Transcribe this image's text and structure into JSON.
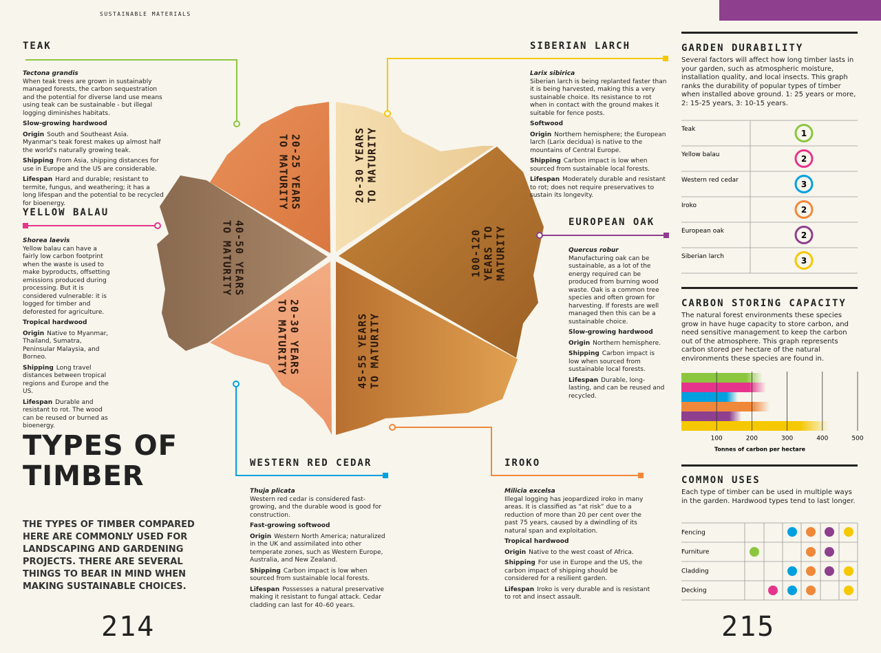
{
  "header": {
    "section": "SUSTAINABLE MATERIALS",
    "title": [
      "TYPES OF",
      "TIMBER"
    ],
    "intro": "THE TYPES OF TIMBER COMPARED HERE ARE COMMONLY USED FOR LANDSCAPING AND GARDENING PROJECTS. THERE ARE SEVERAL THINGS TO BEAR IN MIND WHEN MAKING SUSTAINABLE CHOICES.",
    "pages": [
      "214",
      "215"
    ]
  },
  "labels": {
    "origin": "Origin",
    "shipping": "Shipping",
    "lifespan": "Lifespan"
  },
  "species": [
    {
      "name": "TEAK",
      "latin": "Tectona grandis",
      "description": "When teak trees are grown in sustainably managed forests, the carbon sequestration and the potential for diverse land use means using teak can be sustainable - but illegal logging diminishes habitats.",
      "type": "Slow-growing hardwood",
      "origin": "South and Southeast Asia. Myanmar's teak forest makes up almost half the world's naturally growing teak.",
      "shipping": "From Asia, shipping distances for use in Europe and the US are considerable.",
      "lifespan": "Hard and durable; resistant to termite, fungus, and weathering; it has a long lifespan and the potential to be recycled for bioenergy.",
      "maturity": [
        "20-25 YEARS",
        "TO MATURITY"
      ]
    },
    {
      "name": "YELLOW BALAU",
      "latin": "Shorea laevis",
      "description": "Yellow balau can have a fairly low carbon footprint when the waste is used to make byproducts, offsetting emissions produced during processing. But it is considered vulnerable: it is logged for timber and deforested for agriculture.",
      "type": "Tropical hardwood",
      "origin": "Native to Myanmar, Thailand, Sumatra, Peninsular Malaysia, and Borneo.",
      "shipping": "Long travel distances between tropical regions and Europe and the US.",
      "lifespan": "Durable and resistant to rot. The wood can be reused or burned as bioenergy.",
      "maturity": [
        "40-50 YEARS",
        "TO MATURITY"
      ]
    },
    {
      "name": "SIBERIAN LARCH",
      "latin": "Larix sibirica",
      "description": "Siberian larch is being replanted faster than it is being harvested, making this a very sustainable choice. Its resistance to rot when in contact with the ground makes it suitable for fence posts.",
      "type": "Softwood",
      "origin": "Northern hemisphere; the European larch (Larix decidua) is native to the mountains of Central Europe.",
      "shipping": "Carbon impact is low when sourced from sustainable local forests.",
      "lifespan": "Moderately durable and resistant to rot; does not require preservatives to sustain its longevity.",
      "maturity": [
        "20-30 YEARS",
        "TO MATURITY"
      ]
    },
    {
      "name": "EUROPEAN OAK",
      "latin": "Quercus robur",
      "description": "Manufacturing oak can be sustainable, as a lot of the energy required can be produced from burning wood waste. Oak is a common tree species and often grown for harvesting. If forests are well managed then this can be a sustainable choice.",
      "type": "Slow-growing hardwood",
      "origin": "Northern hemisphere.",
      "shipping": "Carbon impact is low when sourced from sustainable local forests.",
      "lifespan": "Durable, long-lasting, and can be reused and recycled.",
      "maturity": [
        "100-120",
        "YEARS TO",
        "MATURITY"
      ]
    },
    {
      "name": "WESTERN RED CEDAR",
      "latin": "Thuja plicata",
      "description": "Western red cedar is considered fast-growing, and the durable wood is good for construction.",
      "type": "Fast-growing softwood",
      "origin": "Western North America; naturalized in the UK and assimilated into other temperate zones, such as Western Europe, Australia, and New Zealand.",
      "shipping": "Carbon impact is low when sourced from sustainable local forests.",
      "lifespan": "Possesses a natural preservative making it resistant to fungal attack. Cedar cladding can last for 40–60 years.",
      "maturity": [
        "20-30 YEARS",
        "TO MATURITY"
      ]
    },
    {
      "name": "IROKO",
      "latin": "Milicia excelsa",
      "description": "Illegal logging has jeopardized iroko in many areas. It is classified as “at risk” due to a reduction of more than 20 per cent over the past 75 years, caused by a dwindling of its natural span and exploitation.",
      "type": "Tropical hardwood",
      "origin": "Native to the west coast of Africa.",
      "shipping": "For use in Europe and the US, the carbon impact of shipping should be considered for a resilient garden.",
      "lifespan": "Iroko is very durable and is resistant to rot and insect assault.",
      "maturity": [
        "45-55 YEARS",
        "TO MATURITY"
      ]
    }
  ],
  "durability": {
    "title": "GARDEN DURABILITY",
    "description": "Several factors will affect how long timber lasts in your garden, such as atmospheric moisture, installation quality, and local insects. This graph ranks the durability of popular types of timber when installed above ground. 1: 25 years or more, 2: 15-25 years, 3: 10-15 years.",
    "rows": [
      {
        "label": "Teak",
        "rating": 1,
        "color": "#8cc63f"
      },
      {
        "label": "Yellow balau",
        "rating": 2,
        "color": "#e6348c"
      },
      {
        "label": "Western red cedar",
        "rating": 3,
        "color": "#00a0e0"
      },
      {
        "label": "Iroko",
        "rating": 2,
        "color": "#f0883a"
      },
      {
        "label": "European oak",
        "rating": 2,
        "color": "#8e3f8e"
      },
      {
        "label": "Siberian larch",
        "rating": 3,
        "color": "#f5c800"
      }
    ]
  },
  "carbon": {
    "title": "CARBON STORING CAPACITY",
    "description": "The natural forest environments these species grow in have huge capacity to store carbon, and need sensitive management to keep the carbon out of the atmosphere. This graph represents carbon stored per hectare of the natural environments these species are found in.",
    "chart_data": {
      "type": "bar",
      "orientation": "horizontal",
      "xlabel": "Tonnes of carbon per hectare",
      "xlim": [
        0,
        500
      ],
      "xticks": [
        100,
        200,
        300,
        400,
        500
      ],
      "grid": true,
      "series": [
        {
          "color": "#8cc63f",
          "values": [
            230
          ]
        },
        {
          "color": "#e6348c",
          "values": [
            240
          ]
        },
        {
          "color": "#00a0e0",
          "values": [
            160
          ]
        },
        {
          "color": "#f0883a",
          "values": [
            250
          ]
        },
        {
          "color": "#8e3f8e",
          "values": [
            170
          ]
        },
        {
          "color": "#f5c800",
          "values": [
            420
          ]
        }
      ]
    }
  },
  "uses": {
    "title": "COMMON USES",
    "description": "Each type of timber can be used in multiple ways in the garden. Hardwood types tend to last longer.",
    "rows": [
      "Fencing",
      "Furniture",
      "Cladding",
      "Decking"
    ]
  }
}
